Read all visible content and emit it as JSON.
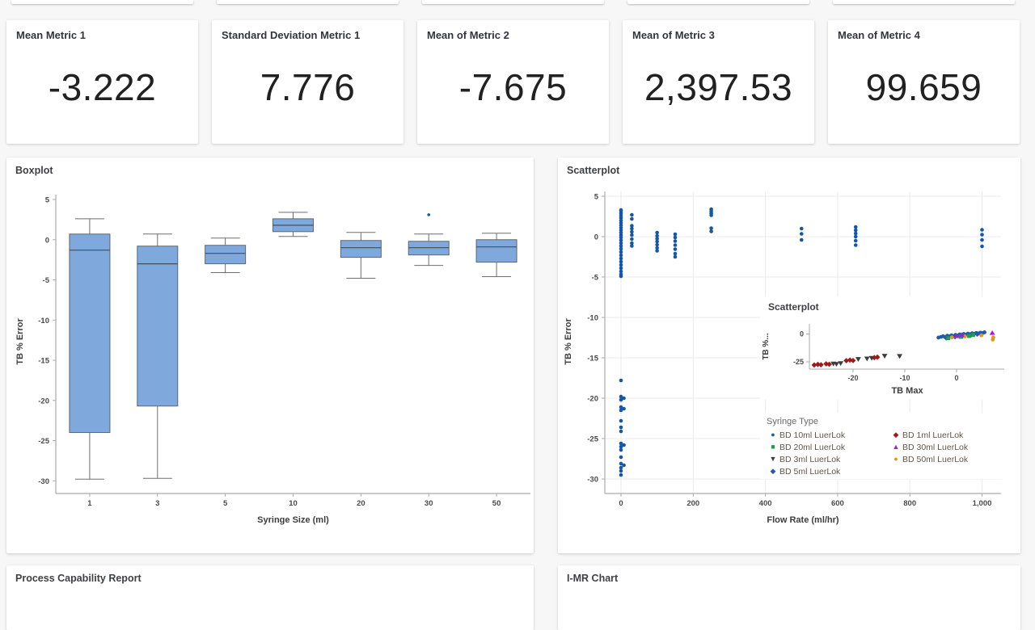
{
  "page": {
    "background": "#f7f7f7",
    "card_background": "#ffffff"
  },
  "metric_cards": [
    {
      "label": "Mean Metric 1",
      "value": "-3.222"
    },
    {
      "label": "Standard Deviation Metric 1",
      "value": "7.776"
    },
    {
      "label": "Mean of Metric 2",
      "value": "-7.675"
    },
    {
      "label": "Mean of Metric 3",
      "value": "2,397.53"
    },
    {
      "label": "Mean of Metric 4",
      "value": "99.659"
    }
  ],
  "panels": {
    "boxplot": {
      "title": "Boxplot"
    },
    "scatterplot": {
      "title": "Scatterplot"
    },
    "inset": {
      "title": "Scatterplot"
    },
    "process_capability": {
      "title": "Process Capability Report"
    },
    "imr": {
      "title": "I-MR Chart"
    }
  },
  "legend": {
    "title": "Syringe Type",
    "columns": [
      [
        {
          "label": "BD 10ml LuerLok",
          "marker": "circle",
          "color": "#1f5da8"
        },
        {
          "label": "BD 20ml LuerLok",
          "marker": "square",
          "color": "#1e9e4a"
        },
        {
          "label": "BD 3ml LuerLok",
          "marker": "triangle-down",
          "color": "#3b3b3b"
        },
        {
          "label": "BD 5ml LuerLok",
          "marker": "diamond",
          "color": "#1f5da8"
        }
      ],
      [
        {
          "label": "BD 1ml LuerLok",
          "marker": "diamond",
          "color": "#9e1b1b"
        },
        {
          "label": "BD 30ml LuerLok",
          "marker": "triangle-up",
          "color": "#a020d0"
        },
        {
          "label": "BD 50ml LuerLok",
          "marker": "circle",
          "color": "#df9721"
        }
      ]
    ]
  },
  "chart_data": [
    {
      "type": "boxplot",
      "title": "Boxplot",
      "xlabel": "Syringe Size (ml)",
      "ylabel": "TB % Error",
      "ylim": [
        -32,
        5.5
      ],
      "yticks": [
        5,
        0,
        -5,
        -10,
        -15,
        -20,
        -25,
        -30
      ],
      "categories": [
        "1",
        "3",
        "5",
        "10",
        "20",
        "30",
        "50"
      ],
      "boxes": [
        {
          "whislo": -29.8,
          "q1": -24.0,
          "med": -1.3,
          "q3": 0.7,
          "whishi": 2.6,
          "outliers": []
        },
        {
          "whislo": -29.7,
          "q1": -20.7,
          "med": -3.0,
          "q3": -0.8,
          "whishi": 0.7,
          "outliers": []
        },
        {
          "whislo": -4.1,
          "q1": -3.0,
          "med": -1.7,
          "q3": -0.7,
          "whishi": 0.2,
          "outliers": []
        },
        {
          "whislo": 0.4,
          "q1": 1.0,
          "med": 1.8,
          "q3": 2.6,
          "whishi": 3.4,
          "outliers": []
        },
        {
          "whislo": -4.8,
          "q1": -2.2,
          "med": -1.0,
          "q3": -0.1,
          "whishi": 0.9,
          "outliers": []
        },
        {
          "whislo": -3.2,
          "q1": -1.9,
          "med": -1.0,
          "q3": -0.2,
          "whishi": 0.7,
          "outliers": [
            3.1
          ]
        },
        {
          "whislo": -4.6,
          "q1": -2.8,
          "med": -0.9,
          "q3": 0.0,
          "whishi": 0.8,
          "outliers": []
        }
      ],
      "box_fill": "#7fa8dc",
      "box_stroke": "#5d6874",
      "median_color": "#444f5a",
      "whisker_color": "#6e6e6e",
      "outlier_color": "#1457a8"
    },
    {
      "type": "scatter",
      "title": "Scatterplot",
      "xlabel": "Flow Rate (ml/hr)",
      "ylabel": "TB % Error",
      "xlim": [
        -45,
        1065
      ],
      "ylim": [
        -32,
        5.5
      ],
      "xticks": [
        0,
        200,
        400,
        600,
        800,
        1000
      ],
      "xtick_labels": [
        "0",
        "200",
        "400",
        "600",
        "800",
        "1,000"
      ],
      "yticks": [
        5,
        0,
        -5,
        -10,
        -15,
        -20,
        -25,
        -30
      ],
      "grid": true,
      "point_color": "#1457a8",
      "clusters": [
        {
          "x": 0,
          "ys": [
            3.3,
            3.05,
            2.8,
            2.55,
            2.3,
            2.0,
            1.7,
            1.4,
            1.1,
            0.8,
            0.5,
            0.2,
            -0.1,
            -0.45,
            -0.8,
            -1.15,
            -1.5,
            -1.9,
            -2.3,
            -2.7,
            -3.1,
            -3.5,
            -3.9,
            -4.3,
            -4.65,
            -4.9
          ]
        },
        {
          "x": 30,
          "ys": [
            2.7,
            2.2,
            1.35,
            1.0,
            0.6,
            0.2,
            -0.3,
            -0.8,
            -1.15
          ]
        },
        {
          "x": 100,
          "ys": [
            0.5,
            0.1,
            -0.25,
            -0.6,
            -1.0,
            -1.4,
            -1.75
          ]
        },
        {
          "x": 150,
          "ys": [
            0.3,
            -0.1,
            -0.55,
            -1.05,
            -1.55,
            -2.1,
            -2.5
          ]
        },
        {
          "x": 250,
          "ys": [
            3.4,
            3.15,
            2.9,
            2.65,
            1.05,
            0.65
          ]
        },
        {
          "x": 500,
          "ys": [
            1.0,
            0.35,
            -0.4
          ]
        },
        {
          "x": 650,
          "ys": [
            1.2,
            0.8,
            0.4,
            0.0,
            -0.5,
            -1.05
          ]
        },
        {
          "x": 1000,
          "ys": [
            0.85,
            0.25,
            -0.4,
            -1.2
          ]
        },
        {
          "x": 0,
          "ys": [
            -17.8,
            -19.8,
            -20.2,
            -21.1,
            -21.5,
            -22.8,
            -23.6,
            -24.1,
            -25.6,
            -26.0,
            -26.4,
            -27.3,
            -28.1,
            -28.6,
            -29.0,
            -29.5
          ]
        },
        {
          "x": 8,
          "ys": [
            -20.0,
            -21.3,
            -25.8,
            -28.3
          ]
        }
      ]
    },
    {
      "type": "scatter",
      "title": "Scatterplot",
      "xlabel": "TB Max",
      "ylabel": "TB %...",
      "xlim": [
        -30,
        9
      ],
      "ylim": [
        -36,
        6
      ],
      "xticks": [
        -20,
        -10,
        0
      ],
      "yticks": [
        0,
        -25
      ],
      "series": [
        {
          "name": "BD 1ml LuerLok",
          "marker": "diamond",
          "color": "#9e1b1b",
          "points": [
            [
              -27.5,
              -27.8
            ],
            [
              -26.8,
              -27.3
            ],
            [
              -26.2,
              -27.6
            ],
            [
              -25.2,
              -26.8
            ],
            [
              -24.6,
              -27.2
            ],
            [
              -21.3,
              -23.9
            ],
            [
              -20.6,
              -23.4
            ],
            [
              -20.0,
              -23.8
            ],
            [
              -15.9,
              -21.2
            ],
            [
              -15.3,
              -20.8
            ]
          ]
        },
        {
          "name": "BD 3ml LuerLok",
          "marker": "triangle-down",
          "color": "#3b3b3b",
          "points": [
            [
              -23.8,
              -26.6
            ],
            [
              -23.2,
              -26.9
            ],
            [
              -22.4,
              -26.2
            ],
            [
              -19.0,
              -22.5
            ],
            [
              -17.3,
              -22.0
            ],
            [
              -16.4,
              -21.5
            ],
            [
              -13.9,
              -19.6
            ],
            [
              -11.0,
              -19.8
            ]
          ]
        },
        {
          "name": "BD 10ml LuerLok",
          "marker": "circle",
          "color": "#1f5da8",
          "points": [
            [
              -3.5,
              -3.2
            ],
            [
              -3.0,
              -2.6
            ],
            [
              -2.6,
              -2.0
            ],
            [
              -2.2,
              -2.8
            ],
            [
              -1.8,
              -1.6
            ],
            [
              -1.4,
              -2.2
            ],
            [
              -1.0,
              -1.2
            ],
            [
              -0.6,
              -1.8
            ],
            [
              -0.2,
              -0.8
            ],
            [
              0.2,
              -1.4
            ],
            [
              0.6,
              -0.4
            ],
            [
              1.0,
              -1.0
            ],
            [
              1.4,
              0.0
            ],
            [
              1.8,
              -0.6
            ],
            [
              2.2,
              0.3
            ],
            [
              2.6,
              -0.2
            ],
            [
              3.0,
              0.6
            ],
            [
              3.4,
              0.1
            ],
            [
              3.8,
              0.9
            ],
            [
              4.2,
              0.4
            ],
            [
              4.6,
              1.2
            ],
            [
              5.0,
              0.8
            ],
            [
              5.4,
              1.5
            ]
          ]
        },
        {
          "name": "BD 5ml LuerLok",
          "marker": "diamond",
          "color": "#1f5da8",
          "points": [
            [
              -2.0,
              -3.5
            ],
            [
              -0.3,
              -2.4
            ],
            [
              1.2,
              -1.5
            ],
            [
              2.8,
              -0.8
            ],
            [
              4.0,
              -0.1
            ]
          ]
        },
        {
          "name": "BD 20ml LuerLok",
          "marker": "square",
          "color": "#1e9e4a",
          "points": [
            [
              -1.6,
              -3.8
            ],
            [
              0.8,
              -2.6
            ],
            [
              2.4,
              -1.8
            ],
            [
              3.2,
              -0.9
            ]
          ]
        },
        {
          "name": "BD 50ml LuerLok",
          "marker": "circle",
          "color": "#df9721",
          "points": [
            [
              -0.9,
              -3.0
            ],
            [
              1.6,
              -2.2
            ],
            [
              4.8,
              -1.2
            ],
            [
              7.0,
              -5.0
            ],
            [
              7.1,
              -3.0
            ]
          ]
        },
        {
          "name": "BD 30ml LuerLok",
          "marker": "triangle-up",
          "color": "#a020d0",
          "points": [
            [
              0.0,
              -1.9
            ],
            [
              1.0,
              -0.9
            ],
            [
              6.9,
              0.9
            ]
          ]
        }
      ]
    }
  ]
}
